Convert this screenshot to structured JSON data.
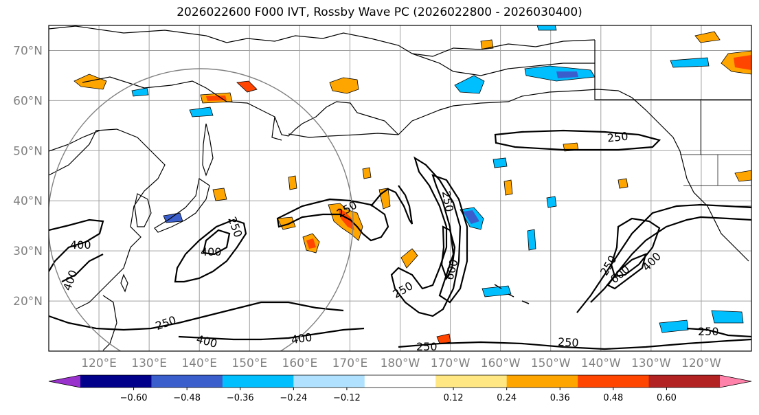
{
  "title": "2026022600 F000 IVT, Rossby Wave PC (2026022800 - 2026030400)",
  "map": {
    "lat_labels": [
      "70°N",
      "60°N",
      "50°N",
      "40°N",
      "30°N",
      "20°N"
    ],
    "lat_values": [
      70,
      60,
      50,
      40,
      30,
      20
    ],
    "lon_labels": [
      "120°E",
      "130°E",
      "140°E",
      "150°E",
      "160°E",
      "170°E",
      "180°W",
      "170°W",
      "160°W",
      "150°W",
      "140°W",
      "130°W",
      "120°W"
    ],
    "lon_values": [
      120,
      130,
      140,
      150,
      160,
      170,
      180,
      190,
      200,
      210,
      220,
      230,
      240
    ],
    "extent": {
      "lon_min": 110,
      "lon_max": 250,
      "lat_min": 10,
      "lat_max": 75
    },
    "ivt_contour_labels": [
      "250",
      "400",
      "250",
      "400",
      "400",
      "250",
      "400",
      "400",
      "250",
      "600",
      "250",
      "250",
      "250",
      "250",
      "600",
      "400",
      "250",
      "250"
    ],
    "colors": {
      "land_outline": "#000000",
      "grid": "#a0a0a0",
      "circle": "#808080",
      "contour": "#000000"
    }
  },
  "colorbar": {
    "tick_labels": [
      "−0.60",
      "−0.48",
      "−0.36",
      "−0.24",
      "−0.12",
      "0.12",
      "0.24",
      "0.36",
      "0.48",
      "0.60"
    ],
    "tick_values": [
      -0.6,
      -0.48,
      -0.36,
      -0.24,
      -0.12,
      0.12,
      0.24,
      0.36,
      0.48,
      0.6
    ],
    "colors": [
      "#9932cc",
      "#00008b",
      "#3a5fcd",
      "#00bfff",
      "#b0e2ff",
      "#ffffff",
      "#ffe884",
      "#ffa500",
      "#ff4500",
      "#b22222",
      "#ff82ab"
    ]
  }
}
